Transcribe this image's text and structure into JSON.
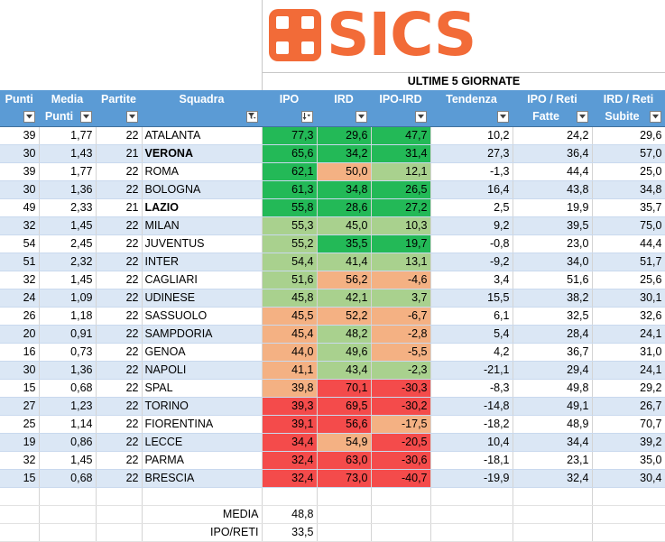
{
  "logo": {
    "text": "SICS",
    "color": "#f26b38"
  },
  "section_title": "ULTIME 5 GIORNATE",
  "headers": {
    "punti": "Punti",
    "media_top": "Media",
    "media_bottom": "Punti",
    "partite": "Partite",
    "squadra": "Squadra",
    "ipo": "IPO",
    "ird": "IRD",
    "ipo_ird": "IPO-IRD",
    "tendenza": "Tendenza",
    "ipo_reti_top": "IPO / Reti",
    "ipo_reti_bottom": "Fatte",
    "ird_reti_top": "IRD / Reti",
    "ird_reti_bottom": "Subite"
  },
  "colors": {
    "green": "#23b957",
    "light_green": "#a9d18e",
    "orange": "#f4b183",
    "red": "#f44b4b",
    "header": "#5b9bd5",
    "summary": "#ccffff"
  },
  "rows": [
    {
      "punti": "39",
      "media": "1,77",
      "partite": "22",
      "squadra": "ATALANTA",
      "bold": false,
      "ipo": "77,3",
      "ipo_c": "grn",
      "ird": "29,6",
      "ird_c": "grn",
      "diff": "47,7",
      "diff_c": "grn",
      "tendenza": "10,2",
      "ipo_reti": "24,2",
      "ird_reti": "29,6"
    },
    {
      "punti": "30",
      "media": "1,43",
      "partite": "21",
      "squadra": "VERONA",
      "bold": true,
      "ipo": "65,6",
      "ipo_c": "grn",
      "ird": "34,2",
      "ird_c": "grn",
      "diff": "31,4",
      "diff_c": "grn",
      "tendenza": "27,3",
      "ipo_reti": "36,4",
      "ird_reti": "57,0"
    },
    {
      "punti": "39",
      "media": "1,77",
      "partite": "22",
      "squadra": "ROMA",
      "bold": false,
      "ipo": "62,1",
      "ipo_c": "grn",
      "ird": "50,0",
      "ird_c": "or",
      "diff": "12,1",
      "diff_c": "lg",
      "tendenza": "-1,3",
      "ipo_reti": "44,4",
      "ird_reti": "25,0"
    },
    {
      "punti": "30",
      "media": "1,36",
      "partite": "22",
      "squadra": "BOLOGNA",
      "bold": false,
      "ipo": "61,3",
      "ipo_c": "grn",
      "ird": "34,8",
      "ird_c": "grn",
      "diff": "26,5",
      "diff_c": "grn",
      "tendenza": "16,4",
      "ipo_reti": "43,8",
      "ird_reti": "34,8"
    },
    {
      "punti": "49",
      "media": "2,33",
      "partite": "21",
      "squadra": "LAZIO",
      "bold": true,
      "ipo": "55,8",
      "ipo_c": "grn",
      "ird": "28,6",
      "ird_c": "grn",
      "diff": "27,2",
      "diff_c": "grn",
      "tendenza": "2,5",
      "ipo_reti": "19,9",
      "ird_reti": "35,7"
    },
    {
      "punti": "32",
      "media": "1,45",
      "partite": "22",
      "squadra": "MILAN",
      "bold": false,
      "ipo": "55,3",
      "ipo_c": "lg",
      "ird": "45,0",
      "ird_c": "lg",
      "diff": "10,3",
      "diff_c": "lg",
      "tendenza": "9,2",
      "ipo_reti": "39,5",
      "ird_reti": "75,0"
    },
    {
      "punti": "54",
      "media": "2,45",
      "partite": "22",
      "squadra": "JUVENTUS",
      "bold": false,
      "ipo": "55,2",
      "ipo_c": "lg",
      "ird": "35,5",
      "ird_c": "grn",
      "diff": "19,7",
      "diff_c": "grn",
      "tendenza": "-0,8",
      "ipo_reti": "23,0",
      "ird_reti": "44,4"
    },
    {
      "punti": "51",
      "media": "2,32",
      "partite": "22",
      "squadra": "INTER",
      "bold": false,
      "ipo": "54,4",
      "ipo_c": "lg",
      "ird": "41,4",
      "ird_c": "lg",
      "diff": "13,1",
      "diff_c": "lg",
      "tendenza": "-9,2",
      "ipo_reti": "34,0",
      "ird_reti": "51,7"
    },
    {
      "punti": "32",
      "media": "1,45",
      "partite": "22",
      "squadra": "CAGLIARI",
      "bold": false,
      "ipo": "51,6",
      "ipo_c": "lg",
      "ird": "56,2",
      "ird_c": "or",
      "diff": "-4,6",
      "diff_c": "or",
      "tendenza": "3,4",
      "ipo_reti": "51,6",
      "ird_reti": "25,6"
    },
    {
      "punti": "24",
      "media": "1,09",
      "partite": "22",
      "squadra": "UDINESE",
      "bold": false,
      "ipo": "45,8",
      "ipo_c": "lg",
      "ird": "42,1",
      "ird_c": "lg",
      "diff": "3,7",
      "diff_c": "lg",
      "tendenza": "15,5",
      "ipo_reti": "38,2",
      "ird_reti": "30,1"
    },
    {
      "punti": "26",
      "media": "1,18",
      "partite": "22",
      "squadra": "SASSUOLO",
      "bold": false,
      "ipo": "45,5",
      "ipo_c": "or",
      "ird": "52,2",
      "ird_c": "or",
      "diff": "-6,7",
      "diff_c": "or",
      "tendenza": "6,1",
      "ipo_reti": "32,5",
      "ird_reti": "32,6"
    },
    {
      "punti": "20",
      "media": "0,91",
      "partite": "22",
      "squadra": "SAMPDORIA",
      "bold": false,
      "ipo": "45,4",
      "ipo_c": "or",
      "ird": "48,2",
      "ird_c": "lg",
      "diff": "-2,8",
      "diff_c": "or",
      "tendenza": "5,4",
      "ipo_reti": "28,4",
      "ird_reti": "24,1"
    },
    {
      "punti": "16",
      "media": "0,73",
      "partite": "22",
      "squadra": "GENOA",
      "bold": false,
      "ipo": "44,0",
      "ipo_c": "or",
      "ird": "49,6",
      "ird_c": "lg",
      "diff": "-5,5",
      "diff_c": "or",
      "tendenza": "4,2",
      "ipo_reti": "36,7",
      "ird_reti": "31,0"
    },
    {
      "punti": "30",
      "media": "1,36",
      "partite": "22",
      "squadra": "NAPOLI",
      "bold": false,
      "ipo": "41,1",
      "ipo_c": "or",
      "ird": "43,4",
      "ird_c": "lg",
      "diff": "-2,3",
      "diff_c": "lg",
      "tendenza": "-21,1",
      "ipo_reti": "29,4",
      "ird_reti": "24,1"
    },
    {
      "punti": "15",
      "media": "0,68",
      "partite": "22",
      "squadra": "SPAL",
      "bold": false,
      "ipo": "39,8",
      "ipo_c": "or",
      "ird": "70,1",
      "ird_c": "red",
      "diff": "-30,3",
      "diff_c": "red",
      "tendenza": "-8,3",
      "ipo_reti": "49,8",
      "ird_reti": "29,2"
    },
    {
      "punti": "27",
      "media": "1,23",
      "partite": "22",
      "squadra": "TORINO",
      "bold": false,
      "ipo": "39,3",
      "ipo_c": "red",
      "ird": "69,5",
      "ird_c": "red",
      "diff": "-30,2",
      "diff_c": "red",
      "tendenza": "-14,8",
      "ipo_reti": "49,1",
      "ird_reti": "26,7"
    },
    {
      "punti": "25",
      "media": "1,14",
      "partite": "22",
      "squadra": "FIORENTINA",
      "bold": false,
      "ipo": "39,1",
      "ipo_c": "red",
      "ird": "56,6",
      "ird_c": "red",
      "diff": "-17,5",
      "diff_c": "or",
      "tendenza": "-18,2",
      "ipo_reti": "48,9",
      "ird_reti": "70,7"
    },
    {
      "punti": "19",
      "media": "0,86",
      "partite": "22",
      "squadra": "LECCE",
      "bold": false,
      "ipo": "34,4",
      "ipo_c": "red",
      "ird": "54,9",
      "ird_c": "or",
      "diff": "-20,5",
      "diff_c": "red",
      "tendenza": "10,4",
      "ipo_reti": "34,4",
      "ird_reti": "39,2"
    },
    {
      "punti": "32",
      "media": "1,45",
      "partite": "22",
      "squadra": "PARMA",
      "bold": false,
      "ipo": "32,4",
      "ipo_c": "red",
      "ird": "63,0",
      "ird_c": "red",
      "diff": "-30,6",
      "diff_c": "red",
      "tendenza": "-18,1",
      "ipo_reti": "23,1",
      "ird_reti": "35,0"
    },
    {
      "punti": "15",
      "media": "0,68",
      "partite": "22",
      "squadra": "BRESCIA",
      "bold": false,
      "ipo": "32,4",
      "ipo_c": "red",
      "ird": "73,0",
      "ird_c": "red",
      "diff": "-40,7",
      "diff_c": "red",
      "tendenza": "-19,9",
      "ipo_reti": "32,4",
      "ird_reti": "30,4"
    }
  ],
  "summary": [
    {
      "label": "MEDIA",
      "value": "48,8"
    },
    {
      "label": "IPO/RETI",
      "value": "33,5"
    }
  ]
}
